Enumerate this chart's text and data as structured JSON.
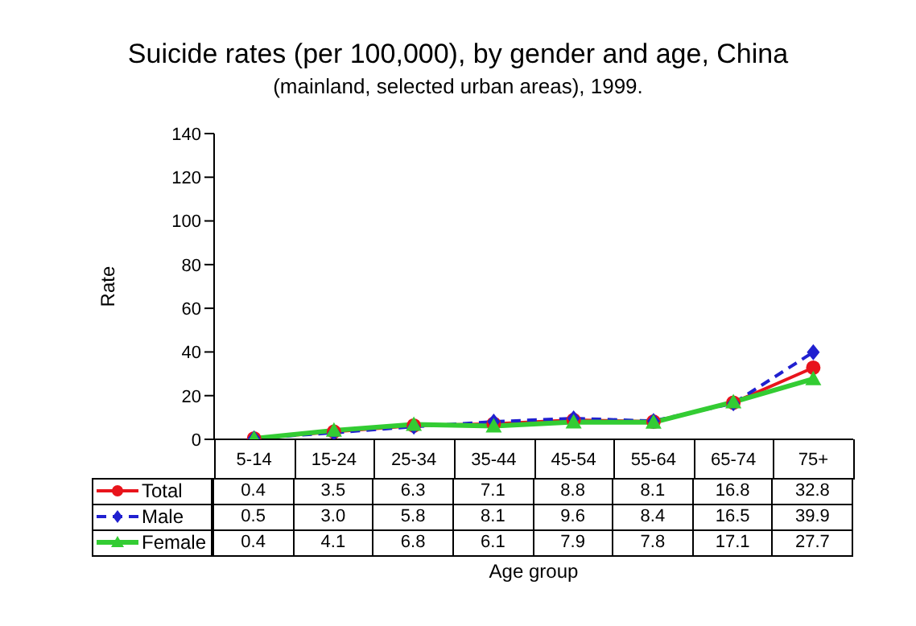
{
  "chart_data": {
    "type": "line",
    "title": "Suicide rates (per 100,000), by gender and age, China",
    "subtitle": "(mainland, selected urban areas), 1999.",
    "xlabel": "Age group",
    "ylabel": "Rate",
    "categories": [
      "5-14",
      "15-24",
      "25-34",
      "35-44",
      "45-54",
      "55-64",
      "65-74",
      "75+"
    ],
    "series": [
      {
        "name": "Total",
        "color": "#e8141c",
        "marker": "circle",
        "line_style": "solid",
        "values": [
          0.4,
          3.5,
          6.3,
          7.1,
          8.8,
          8.1,
          16.8,
          32.8
        ],
        "value_labels": [
          "0.4",
          "3.5",
          "6.3",
          "7.1",
          "8.8",
          "8.1",
          "16.8",
          "32.8"
        ]
      },
      {
        "name": "Male",
        "color": "#2020d0",
        "marker": "diamond",
        "line_style": "dashed",
        "values": [
          0.5,
          3.0,
          5.8,
          8.1,
          9.6,
          8.4,
          16.5,
          39.9
        ],
        "value_labels": [
          "0.5",
          "3.0",
          "5.8",
          "8.1",
          "9.6",
          "8.4",
          "16.5",
          "39.9"
        ]
      },
      {
        "name": "Female",
        "color": "#33cc33",
        "marker": "triangle",
        "line_style": "solid",
        "values": [
          0.4,
          4.1,
          6.8,
          6.1,
          7.9,
          7.8,
          17.1,
          27.7
        ],
        "value_labels": [
          "0.4",
          "4.1",
          "6.8",
          "6.1",
          "7.9",
          "7.8",
          "17.1",
          "27.7"
        ]
      }
    ],
    "ylim": [
      0,
      140
    ],
    "yticks": [
      0,
      20,
      40,
      60,
      80,
      100,
      120,
      140
    ],
    "grid": false,
    "legend": "bottom left"
  }
}
